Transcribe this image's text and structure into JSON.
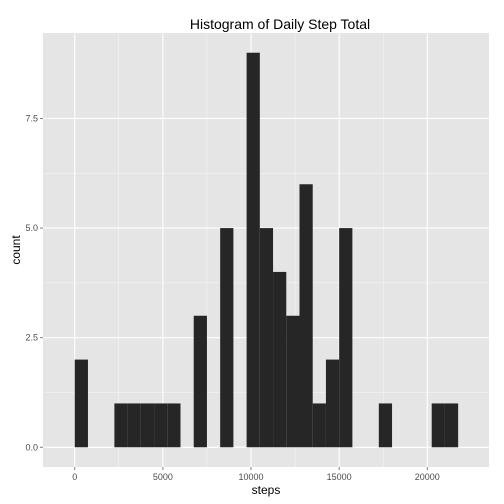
{
  "chart_data": {
    "type": "bar",
    "title": "Histogram of Daily Step Total",
    "xlabel": "steps",
    "ylabel": "count",
    "xlim": [
      -1800,
      23500
    ],
    "ylim": [
      -0.45,
      9.45
    ],
    "x_ticks": [
      0,
      5000,
      10000,
      15000,
      20000
    ],
    "x_tick_labels": [
      "0",
      "5000",
      "10000",
      "15000",
      "20000"
    ],
    "y_ticks": [
      0,
      2.5,
      5,
      7.5
    ],
    "y_tick_labels": [
      "0.0",
      "2.5",
      "5.0",
      "7.5"
    ],
    "grid": true,
    "panel_background": "#e5e5e5",
    "grid_color": "#ffffff",
    "bar_color": "#262626",
    "bins": [
      {
        "x0": 0,
        "x1": 750,
        "count": 2
      },
      {
        "x0": 2250,
        "x1": 3000,
        "count": 1
      },
      {
        "x0": 3000,
        "x1": 3750,
        "count": 1
      },
      {
        "x0": 3750,
        "x1": 4500,
        "count": 1
      },
      {
        "x0": 4500,
        "x1": 5250,
        "count": 1
      },
      {
        "x0": 5250,
        "x1": 6000,
        "count": 1
      },
      {
        "x0": 6750,
        "x1": 7500,
        "count": 3
      },
      {
        "x0": 8250,
        "x1": 9000,
        "count": 5
      },
      {
        "x0": 9750,
        "x1": 10500,
        "count": 9
      },
      {
        "x0": 10500,
        "x1": 11250,
        "count": 5
      },
      {
        "x0": 11250,
        "x1": 12000,
        "count": 4
      },
      {
        "x0": 12000,
        "x1": 12750,
        "count": 3
      },
      {
        "x0": 12750,
        "x1": 13500,
        "count": 6
      },
      {
        "x0": 13500,
        "x1": 14250,
        "count": 1
      },
      {
        "x0": 14250,
        "x1": 15000,
        "count": 2
      },
      {
        "x0": 15000,
        "x1": 15750,
        "count": 5
      },
      {
        "x0": 17250,
        "x1": 18000,
        "count": 1
      },
      {
        "x0": 20250,
        "x1": 21000,
        "count": 1
      },
      {
        "x0": 21000,
        "x1": 21750,
        "count": 1
      }
    ]
  }
}
